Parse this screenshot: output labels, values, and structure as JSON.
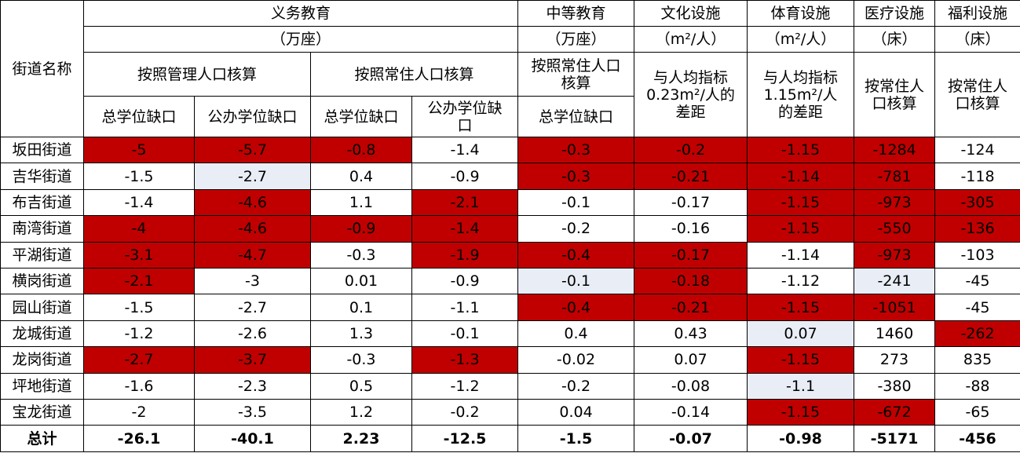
{
  "header": {
    "rows": [
      [
        "街道名称",
        "义务教育",
        "中等教育",
        "文化设施",
        "体育设施",
        "医疗设施",
        "福利设施"
      ],
      [
        "（万座）",
        "（万座）",
        "（m²/人）",
        "（m²/人）",
        "（床）",
        "（床）"
      ],
      [
        "按照管理人口核算",
        "按照常住人口核算",
        "按照常住人口\n核算",
        "与人均指标\n0.23m²/人的\n差距",
        "与人均指标\n1.15m²/人\n的差距",
        "按常住人\n口核算",
        "按常住人\n口核算"
      ],
      [
        "总学位缺口",
        "公办学位缺口",
        "总学位缺口",
        "公办学位缺\n口",
        "总学位缺口"
      ]
    ]
  },
  "table": {
    "rows": [
      [
        "坂田街道",
        "-5",
        "-5.7",
        "-0.8",
        "-1.4",
        "-0.3",
        "-0.2",
        "-1.15",
        "-1284",
        "-124"
      ],
      [
        "吉华街道",
        "-1.5",
        "-2.7",
        "0.4",
        "-0.9",
        "-0.3",
        "-0.21",
        "-1.14",
        "-781",
        "-118"
      ],
      [
        "布吉街道",
        "-1.4",
        "-4.6",
        "1.1",
        "-2.1",
        "-0.1",
        "-0.17",
        "-1.15",
        "-973",
        "-305"
      ],
      [
        "南湾街道",
        "-4",
        "-4.6",
        "-0.9",
        "-1.4",
        "-0.2",
        "-0.16",
        "-1.15",
        "-550",
        "-136"
      ],
      [
        "平湖街道",
        "-3.1",
        "-4.7",
        "-0.3",
        "-1.9",
        "-0.4",
        "-0.17",
        "-1.14",
        "-973",
        "-103"
      ],
      [
        "横岗街道",
        "-2.1",
        "-3",
        "0.01",
        "-0.9",
        "-0.1",
        "-0.18",
        "-1.12",
        "-241",
        "-45"
      ],
      [
        "园山街道",
        "-1.5",
        "-2.7",
        "0.1",
        "-1.1",
        "-0.4",
        "-0.21",
        "-1.15",
        "-1051",
        "-45"
      ],
      [
        "龙城街道",
        "-1.2",
        "-2.6",
        "1.3",
        "-0.1",
        "0.4",
        "0.43",
        "0.07",
        "1460",
        "-262"
      ],
      [
        "龙岗街道",
        "-2.7",
        "-3.7",
        "-0.3",
        "-1.3",
        "-0.02",
        "0.07",
        "-1.15",
        "273",
        "835"
      ],
      [
        "坪地街道",
        "-1.6",
        "-2.3",
        "0.5",
        "-1.2",
        "-0.2",
        "-0.08",
        "-1.1",
        "-380",
        "-88"
      ],
      [
        "宝龙街道",
        "-2",
        "-3.5",
        "1.2",
        "-0.2",
        "0.04",
        "-0.14",
        "-1.15",
        "-672",
        "-65"
      ]
    ],
    "total": [
      "总计",
      "-26.1",
      "-40.1",
      "2.23",
      "-12.5",
      "-1.5",
      "-0.07",
      "-0.98",
      "-5171",
      "-456"
    ],
    "highlights": [
      {
        "color": "#c00000",
        "cells": [
          [
            0,
            1
          ],
          [
            0,
            2
          ],
          [
            0,
            3
          ],
          [
            0,
            5
          ],
          [
            0,
            6
          ],
          [
            0,
            7
          ],
          [
            0,
            8
          ],
          [
            1,
            5
          ],
          [
            1,
            6
          ],
          [
            1,
            7
          ],
          [
            1,
            8
          ],
          [
            2,
            2
          ],
          [
            2,
            4
          ],
          [
            2,
            7
          ],
          [
            2,
            8
          ],
          [
            2,
            9
          ],
          [
            3,
            1
          ],
          [
            3,
            2
          ],
          [
            3,
            3
          ],
          [
            3,
            4
          ],
          [
            3,
            7
          ],
          [
            3,
            8
          ],
          [
            3,
            9
          ],
          [
            4,
            1
          ],
          [
            4,
            2
          ],
          [
            4,
            4
          ],
          [
            4,
            5
          ],
          [
            4,
            6
          ],
          [
            4,
            8
          ],
          [
            5,
            1
          ],
          [
            5,
            6
          ],
          [
            6,
            5
          ],
          [
            6,
            6
          ],
          [
            6,
            7
          ],
          [
            6,
            8
          ],
          [
            7,
            9
          ],
          [
            8,
            1
          ],
          [
            8,
            2
          ],
          [
            8,
            4
          ],
          [
            8,
            7
          ],
          [
            10,
            7
          ],
          [
            10,
            8
          ]
        ]
      },
      {
        "color": "#e9edf6",
        "cells": [
          [
            1,
            2
          ],
          [
            5,
            5
          ],
          [
            5,
            8
          ],
          [
            7,
            7
          ],
          [
            9,
            7
          ]
        ]
      }
    ]
  }
}
